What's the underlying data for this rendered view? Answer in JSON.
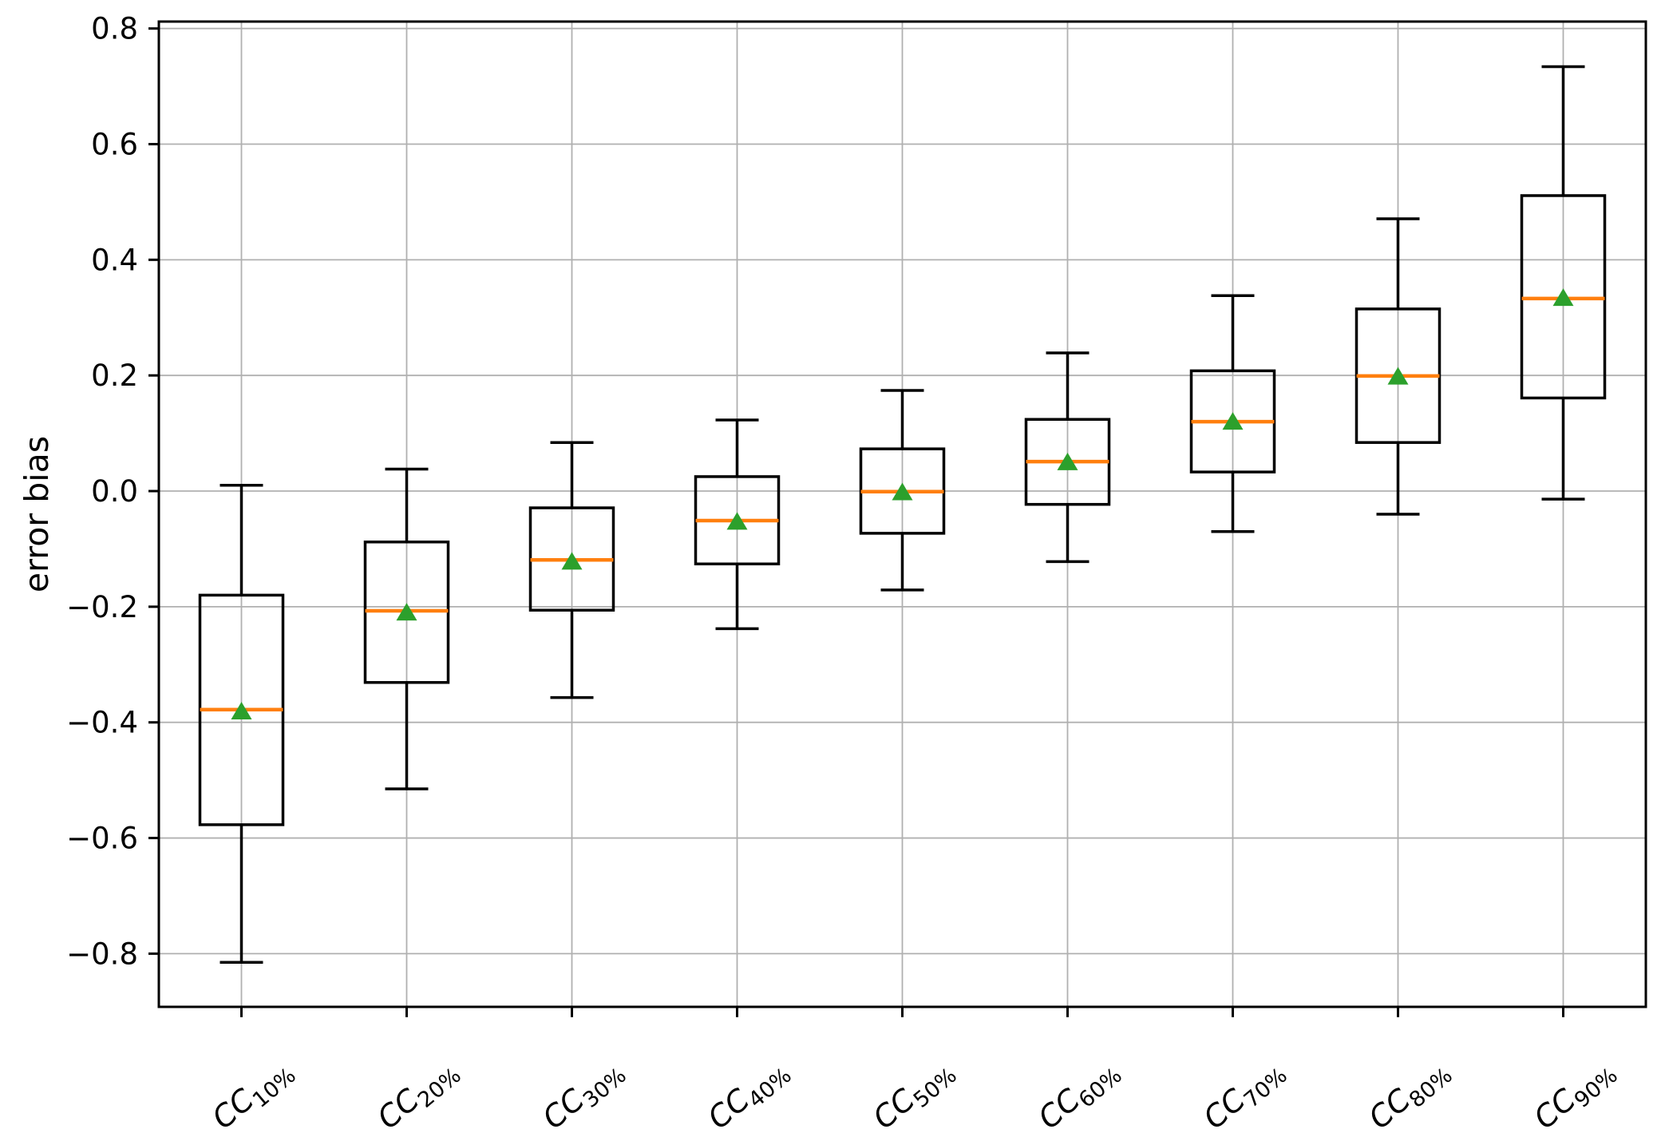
{
  "chart_data": {
    "type": "box",
    "title": "",
    "xlabel": "",
    "ylabel": "error bias",
    "ylim": [
      -0.892,
      0.812
    ],
    "grid": true,
    "legend": "none",
    "orientation": "vertical",
    "yticks": [
      0.8,
      0.6,
      0.4,
      0.2,
      0.0,
      -0.2,
      -0.4,
      -0.6,
      -0.8
    ],
    "ytick_labels": [
      "0.8",
      "0.6",
      "0.4",
      "0.2",
      "0.0",
      "−0.2",
      "−0.4",
      "−0.6",
      "−0.8"
    ],
    "categories": [
      {
        "base": "CC",
        "sub": "10%",
        "label": "CC10%"
      },
      {
        "base": "CC",
        "sub": "20%",
        "label": "CC20%"
      },
      {
        "base": "CC",
        "sub": "30%",
        "label": "CC30%"
      },
      {
        "base": "CC",
        "sub": "40%",
        "label": "CC40%"
      },
      {
        "base": "CC",
        "sub": "50%",
        "label": "CC50%"
      },
      {
        "base": "CC",
        "sub": "60%",
        "label": "CC60%"
      },
      {
        "base": "CC",
        "sub": "70%",
        "label": "CC70%"
      },
      {
        "base": "CC",
        "sub": "80%",
        "label": "CC80%"
      },
      {
        "base": "CC",
        "sub": "90%",
        "label": "CC90%"
      }
    ],
    "boxes": [
      {
        "whislo": -0.815,
        "q1": -0.577,
        "med": -0.378,
        "mean": -0.381,
        "q3": -0.18,
        "whishi": 0.01
      },
      {
        "whislo": -0.515,
        "q1": -0.331,
        "med": -0.207,
        "mean": -0.21,
        "q3": -0.088,
        "whishi": 0.038
      },
      {
        "whislo": -0.357,
        "q1": -0.206,
        "med": -0.119,
        "mean": -0.122,
        "q3": -0.029,
        "whishi": 0.084
      },
      {
        "whislo": -0.238,
        "q1": -0.126,
        "med": -0.051,
        "mean": -0.053,
        "q3": 0.025,
        "whishi": 0.123
      },
      {
        "whislo": -0.171,
        "q1": -0.073,
        "med": -0.001,
        "mean": -0.002,
        "q3": 0.073,
        "whishi": 0.174
      },
      {
        "whislo": -0.122,
        "q1": -0.023,
        "med": 0.051,
        "mean": 0.05,
        "q3": 0.124,
        "whishi": 0.239
      },
      {
        "whislo": -0.07,
        "q1": 0.033,
        "med": 0.12,
        "mean": 0.12,
        "q3": 0.208,
        "whishi": 0.338
      },
      {
        "whislo": -0.04,
        "q1": 0.084,
        "med": 0.199,
        "mean": 0.198,
        "q3": 0.315,
        "whishi": 0.471
      },
      {
        "whislo": -0.014,
        "q1": 0.161,
        "med": 0.333,
        "mean": 0.334,
        "q3": 0.511,
        "whishi": 0.734
      }
    ],
    "mean_marker_shape": "triangle-up",
    "colors": {
      "box_line": "#000000",
      "whisker": "#000000",
      "median": "#ff7f0e",
      "mean_marker": "#2ca02c",
      "grid": "#b0b0b0",
      "axis": "#000000",
      "background": "#ffffff",
      "tick_label": "#000000"
    }
  }
}
